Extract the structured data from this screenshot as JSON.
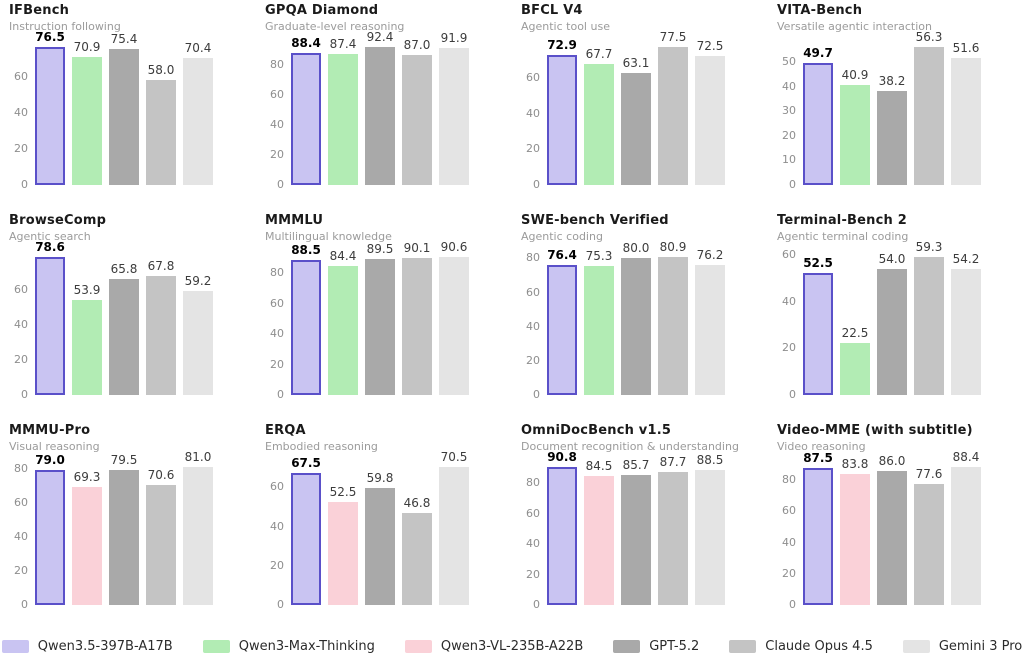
{
  "page": {
    "background": "#ffffff"
  },
  "legend": {
    "items": [
      {
        "label": "Qwen3.5-397B-A17B",
        "color": "#c9c4f2",
        "border": "#5a50c9"
      },
      {
        "label": "Qwen3-Max-Thinking",
        "color": "#b2ecb4",
        "border": null
      },
      {
        "label": "Qwen3-VL-235B-A22B",
        "color": "#fad1d8",
        "border": null
      },
      {
        "label": "GPT-5.2",
        "color": "#a9a9a9",
        "border": null
      },
      {
        "label": "Claude Opus 4.5",
        "color": "#c4c4c4",
        "border": null
      },
      {
        "label": "Gemini 3 Pro",
        "color": "#e4e4e4",
        "border": null
      }
    ]
  },
  "chart_data": [
    {
      "type": "bar",
      "slug": "ifbench",
      "title": "IFBench",
      "subtitle": "Instruction following",
      "categories": [
        "Qwen3.5-397B-A17B",
        "Qwen3-Max-Thinking",
        "GPT-5.2",
        "Claude Opus 4.5",
        "Gemini 3 Pro"
      ],
      "legend_idx": [
        0,
        1,
        3,
        4,
        5
      ],
      "values": [
        76.5,
        70.9,
        75.4,
        58.0,
        70.4
      ],
      "yticks": [
        0,
        20,
        40,
        60
      ],
      "ylim": [
        0,
        80.3
      ],
      "grid": false
    },
    {
      "type": "bar",
      "slug": "gpqa-diamond",
      "title": "GPQA Diamond",
      "subtitle": "Graduate-level reasoning",
      "categories": [
        "Qwen3.5-397B-A17B",
        "Qwen3-Max-Thinking",
        "GPT-5.2",
        "Claude Opus 4.5",
        "Gemini 3 Pro"
      ],
      "legend_idx": [
        0,
        1,
        3,
        4,
        5
      ],
      "values": [
        88.4,
        87.4,
        92.4,
        87.0,
        91.9
      ],
      "yticks": [
        0,
        20,
        40,
        60,
        80
      ],
      "ylim": [
        0,
        97.0
      ],
      "grid": false
    },
    {
      "type": "bar",
      "slug": "bfcl-v4",
      "title": "BFCL V4",
      "subtitle": "Agentic tool use",
      "categories": [
        "Qwen3.5-397B-A17B",
        "Qwen3-Max-Thinking",
        "GPT-5.2",
        "Claude Opus 4.5",
        "Gemini 3 Pro"
      ],
      "legend_idx": [
        0,
        1,
        3,
        4,
        5
      ],
      "values": [
        72.9,
        67.7,
        63.1,
        77.5,
        72.5
      ],
      "yticks": [
        0,
        20,
        40,
        60
      ],
      "ylim": [
        0,
        81.4
      ],
      "grid": false
    },
    {
      "type": "bar",
      "slug": "vita-bench",
      "title": "VITA-Bench",
      "subtitle": "Versatile agentic interaction",
      "categories": [
        "Qwen3.5-397B-A17B",
        "Qwen3-Max-Thinking",
        "GPT-5.2",
        "Claude Opus 4.5",
        "Gemini 3 Pro"
      ],
      "legend_idx": [
        0,
        1,
        3,
        4,
        5
      ],
      "values": [
        49.7,
        40.9,
        38.2,
        56.3,
        51.6
      ],
      "yticks": [
        0,
        10,
        20,
        30,
        40,
        50
      ],
      "ylim": [
        0,
        59.1
      ],
      "grid": false
    },
    {
      "type": "bar",
      "slug": "browsecomp",
      "title": "BrowseComp",
      "subtitle": "Agentic search",
      "categories": [
        "Qwen3.5-397B-A17B",
        "Qwen3-Max-Thinking",
        "GPT-5.2",
        "Claude Opus 4.5",
        "Gemini 3 Pro"
      ],
      "legend_idx": [
        0,
        1,
        3,
        4,
        5
      ],
      "values": [
        78.6,
        53.9,
        65.8,
        67.8,
        59.2
      ],
      "yticks": [
        0,
        20,
        40,
        60
      ],
      "ylim": [
        0,
        82.5
      ],
      "grid": false
    },
    {
      "type": "bar",
      "slug": "mmmlu",
      "title": "MMMLU",
      "subtitle": "Multilingual knowledge",
      "categories": [
        "Qwen3.5-397B-A17B",
        "Qwen3-Max-Thinking",
        "GPT-5.2",
        "Claude Opus 4.5",
        "Gemini 3 Pro"
      ],
      "legend_idx": [
        0,
        1,
        3,
        4,
        5
      ],
      "values": [
        88.5,
        84.4,
        89.5,
        90.1,
        90.6
      ],
      "yticks": [
        0,
        20,
        40,
        60,
        80
      ],
      "ylim": [
        0,
        95.1
      ],
      "grid": false
    },
    {
      "type": "bar",
      "slug": "swe-bench-verified",
      "title": "SWE-bench Verified",
      "subtitle": "Agentic coding",
      "categories": [
        "Qwen3.5-397B-A17B",
        "Qwen3-Max-Thinking",
        "GPT-5.2",
        "Claude Opus 4.5",
        "Gemini 3 Pro"
      ],
      "legend_idx": [
        0,
        1,
        3,
        4,
        5
      ],
      "values": [
        76.4,
        75.3,
        80.0,
        80.9,
        76.2
      ],
      "yticks": [
        0,
        20,
        40,
        60,
        80
      ],
      "ylim": [
        0,
        84.9
      ],
      "grid": false
    },
    {
      "type": "bar",
      "slug": "terminal-bench-2",
      "title": "Terminal-Bench 2",
      "subtitle": "Agentic terminal coding",
      "categories": [
        "Qwen3.5-397B-A17B",
        "Qwen3-Max-Thinking",
        "GPT-5.2",
        "Claude Opus 4.5",
        "Gemini 3 Pro"
      ],
      "legend_idx": [
        0,
        1,
        3,
        4,
        5
      ],
      "values": [
        52.5,
        22.5,
        54.0,
        59.3,
        54.2
      ],
      "yticks": [
        0,
        20,
        40,
        60
      ],
      "ylim": [
        0,
        62.3
      ],
      "grid": false
    },
    {
      "type": "bar",
      "slug": "mmmu-pro",
      "title": "MMMU-Pro",
      "subtitle": "Visual reasoning",
      "categories": [
        "Qwen3.5-397B-A17B",
        "Qwen3-VL-235B-A22B",
        "GPT-5.2",
        "Claude Opus 4.5",
        "Gemini 3 Pro"
      ],
      "legend_idx": [
        0,
        2,
        3,
        4,
        5
      ],
      "values": [
        79.0,
        69.3,
        79.5,
        70.6,
        81.0
      ],
      "yticks": [
        0,
        20,
        40,
        60,
        80
      ],
      "ylim": [
        0,
        85.1
      ],
      "grid": false
    },
    {
      "type": "bar",
      "slug": "erqa",
      "title": "ERQA",
      "subtitle": "Embodied reasoning",
      "categories": [
        "Qwen3.5-397B-A17B",
        "Qwen3-VL-235B-A22B",
        "GPT-5.2",
        "Claude Opus 4.5",
        "Gemini 3 Pro"
      ],
      "legend_idx": [
        0,
        2,
        3,
        4,
        5
      ],
      "values": [
        67.5,
        52.5,
        59.8,
        46.8,
        70.5
      ],
      "yticks": [
        0,
        20,
        40,
        60
      ],
      "ylim": [
        0,
        74.0
      ],
      "grid": false
    },
    {
      "type": "bar",
      "slug": "omnidocbench-v1-5",
      "title": "OmniDocBench v1.5",
      "subtitle": "Document recognition & understanding",
      "categories": [
        "Qwen3.5-397B-A17B",
        "Qwen3-VL-235B-A22B",
        "GPT-5.2",
        "Claude Opus 4.5",
        "Gemini 3 Pro"
      ],
      "legend_idx": [
        0,
        2,
        3,
        4,
        5
      ],
      "values": [
        90.8,
        84.5,
        85.7,
        87.7,
        88.5
      ],
      "yticks": [
        0,
        20,
        40,
        60,
        80
      ],
      "ylim": [
        0,
        95.3
      ],
      "grid": false
    },
    {
      "type": "bar",
      "slug": "video-mme",
      "title": "Video-MME (with subtitle)",
      "subtitle": "Video reasoning",
      "categories": [
        "Qwen3.5-397B-A17B",
        "Qwen3-VL-235B-A22B",
        "GPT-5.2",
        "Claude Opus 4.5",
        "Gemini 3 Pro"
      ],
      "legend_idx": [
        0,
        2,
        3,
        4,
        5
      ],
      "values": [
        87.5,
        83.8,
        86.0,
        77.6,
        88.4
      ],
      "yticks": [
        0,
        20,
        40,
        60,
        80
      ],
      "ylim": [
        0,
        92.8
      ],
      "grid": false
    }
  ]
}
